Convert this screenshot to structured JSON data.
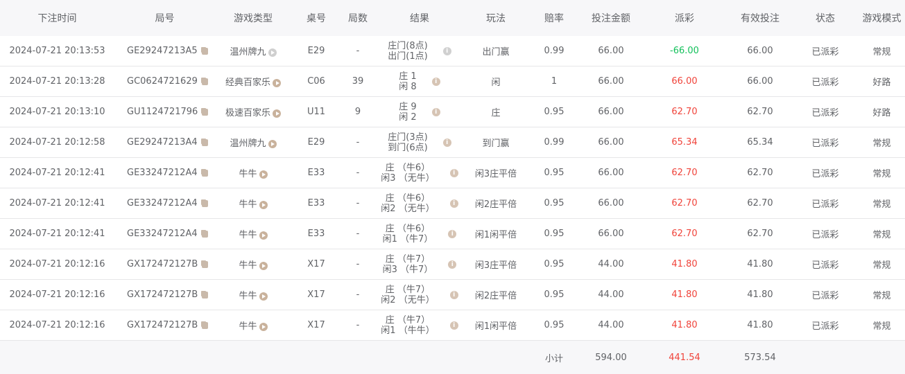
{
  "headers": [
    "下注时间",
    "局号",
    "游戏类型",
    "桌号",
    "局数",
    "结果",
    "玩法",
    "赔率",
    "投注金额",
    "派彩",
    "有效投注",
    "状态",
    "游戏模式"
  ],
  "rows": [
    {
      "time": "2024-07-21 20:13:53",
      "id": "GE29247213A5",
      "type": "温州牌九",
      "desk": "E29",
      "rounds": "-",
      "result": [
        "庄门(8点)",
        "出门(1点)"
      ],
      "play": "出门赢",
      "odds": "0.99",
      "bet": "66.00",
      "payout": "-66.00",
      "valid": "66.00",
      "status": "已派彩",
      "mode": "常规",
      "disabled": true
    },
    {
      "time": "2024-07-21 20:13:28",
      "id": "GC0624721629",
      "type": "经典百家乐",
      "desk": "C06",
      "rounds": "39",
      "result": [
        "庄 1",
        "闲 8"
      ],
      "play": "闲",
      "odds": "1",
      "bet": "66.00",
      "payout": "66.00",
      "valid": "66.00",
      "status": "已派彩",
      "mode": "好路"
    },
    {
      "time": "2024-07-21 20:13:10",
      "id": "GU1124721796",
      "type": "极速百家乐",
      "desk": "U11",
      "rounds": "9",
      "result": [
        "庄 9",
        "闲 2"
      ],
      "play": "庄",
      "odds": "0.95",
      "bet": "66.00",
      "payout": "62.70",
      "valid": "62.70",
      "status": "已派彩",
      "mode": "好路"
    },
    {
      "time": "2024-07-21 20:12:58",
      "id": "GE29247213A4",
      "type": "温州牌九",
      "desk": "E29",
      "rounds": "-",
      "result": [
        "庄门(3点)",
        "到门(6点)"
      ],
      "play": "到门赢",
      "odds": "0.99",
      "bet": "66.00",
      "payout": "65.34",
      "valid": "65.34",
      "status": "已派彩",
      "mode": "常规"
    },
    {
      "time": "2024-07-21 20:12:41",
      "id": "GE33247212A4",
      "type": "牛牛",
      "desk": "E33",
      "rounds": "-",
      "result": [
        "庄 （牛6）",
        "闲3 （无牛）"
      ],
      "play": "闲3庄平倍",
      "odds": "0.95",
      "bet": "66.00",
      "payout": "62.70",
      "valid": "62.70",
      "status": "已派彩",
      "mode": "常规"
    },
    {
      "time": "2024-07-21 20:12:41",
      "id": "GE33247212A4",
      "type": "牛牛",
      "desk": "E33",
      "rounds": "-",
      "result": [
        "庄 （牛6）",
        "闲2 （无牛）"
      ],
      "play": "闲2庄平倍",
      "odds": "0.95",
      "bet": "66.00",
      "payout": "62.70",
      "valid": "62.70",
      "status": "已派彩",
      "mode": "常规"
    },
    {
      "time": "2024-07-21 20:12:41",
      "id": "GE33247212A4",
      "type": "牛牛",
      "desk": "E33",
      "rounds": "-",
      "result": [
        "庄 （牛6）",
        "闲1 （牛7）"
      ],
      "play": "闲1闲平倍",
      "odds": "0.95",
      "bet": "66.00",
      "payout": "62.70",
      "valid": "62.70",
      "status": "已派彩",
      "mode": "常规"
    },
    {
      "time": "2024-07-21 20:12:16",
      "id": "GX172472127B",
      "type": "牛牛",
      "desk": "X17",
      "rounds": "-",
      "result": [
        "庄 （牛7）",
        "闲3 （牛7）"
      ],
      "play": "闲3庄平倍",
      "odds": "0.95",
      "bet": "44.00",
      "payout": "41.80",
      "valid": "41.80",
      "status": "已派彩",
      "mode": "常规"
    },
    {
      "time": "2024-07-21 20:12:16",
      "id": "GX172472127B",
      "type": "牛牛",
      "desk": "X17",
      "rounds": "-",
      "result": [
        "庄 （牛7）",
        "闲2 （无牛）"
      ],
      "play": "闲2庄平倍",
      "odds": "0.95",
      "bet": "44.00",
      "payout": "41.80",
      "valid": "41.80",
      "status": "已派彩",
      "mode": "常规"
    },
    {
      "time": "2024-07-21 20:12:16",
      "id": "GX172472127B",
      "type": "牛牛",
      "desk": "X17",
      "rounds": "-",
      "result": [
        "庄 （牛7）",
        "闲1 （牛牛）"
      ],
      "play": "闲1闲平倍",
      "odds": "0.95",
      "bet": "44.00",
      "payout": "41.80",
      "valid": "41.80",
      "status": "已派彩",
      "mode": "常规"
    }
  ],
  "footer": {
    "label": "小计",
    "bet": "594.00",
    "payout": "441.54",
    "valid": "573.54"
  },
  "colors": {
    "loss": "#12c05a",
    "win": "#f0433a"
  }
}
